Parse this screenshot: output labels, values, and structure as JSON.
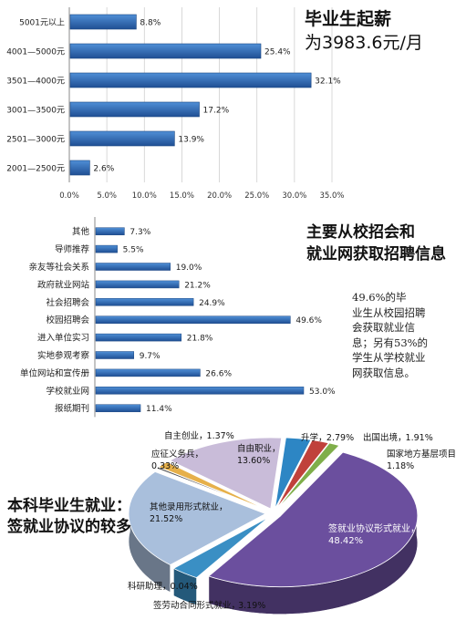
{
  "chart_data": [
    {
      "type": "bar",
      "orientation": "horizontal",
      "title": "毕业生起薪",
      "subtitle": "为3983.6元/月",
      "categories": [
        "5001元以上",
        "4001—5000元",
        "3501—4000元",
        "3001—3500元",
        "2501—3000元",
        "2001—2500元"
      ],
      "values": [
        8.8,
        25.4,
        32.1,
        17.2,
        13.9,
        2.6
      ],
      "value_labels": [
        "8.8%",
        "25.4%",
        "32.1%",
        "17.2%",
        "13.9%",
        "2.6%"
      ],
      "xlim": [
        0,
        35
      ],
      "x_ticks": [
        "0.0%",
        "5.0%",
        "10.0%",
        "15.0%",
        "20.0%",
        "25.0%",
        "30.0%",
        "35.0%"
      ],
      "grid": true,
      "color": "#2f6cb5"
    },
    {
      "type": "bar",
      "orientation": "horizontal",
      "title": "主要从校招会和",
      "subtitle": "就业网获取招聘信息",
      "categories": [
        "其他",
        "导师推荐",
        "亲友等社会关系",
        "政府就业网站",
        "社会招聘会",
        "校园招聘会",
        "进入单位实习",
        "实地参观考察",
        "单位网站和宣传册",
        "学校就业网",
        "报纸期刊"
      ],
      "values": [
        7.3,
        5.5,
        19.0,
        21.2,
        24.9,
        49.6,
        21.8,
        9.7,
        26.6,
        53.0,
        11.4
      ],
      "value_labels": [
        "7.3%",
        "5.5%",
        "19.0%",
        "21.2%",
        "24.9%",
        "49.6%",
        "21.8%",
        "9.7%",
        "26.6%",
        "53.0%",
        "11.4%"
      ],
      "note": [
        "49.6%的毕",
        "业生从校园招聘",
        "会获取就业信",
        "息；另有53%的",
        "学生从学校就业",
        "网获取信息。"
      ],
      "color": "#2f6cb5"
    },
    {
      "type": "pie",
      "title": "本科毕业生就业：",
      "subtitle": "签就业协议的较多",
      "slices": [
        {
          "label": "签就业协议形式就业，",
          "value_text": "48.42%",
          "value": 48.42,
          "color": "#6b4f9e"
        },
        {
          "label": "签劳动合同形式就业，",
          "value_text": "3.19%",
          "value": 3.19,
          "color": "#3a8fc4"
        },
        {
          "label": "科研助理，",
          "value_text": "0.04%",
          "value": 0.04,
          "color": "#c8cf6a"
        },
        {
          "label": "其他录用形式就业，",
          "value_text": "21.52%",
          "value": 21.52,
          "color": "#a9bfdc"
        },
        {
          "label": "应征义务兵，",
          "value_text": "0.33%",
          "value": 0.33,
          "color": "#4b4b4b"
        },
        {
          "label": "自主创业，",
          "value_text": "1.37%",
          "value": 1.37,
          "color": "#e6b04a"
        },
        {
          "label": "自由职业，",
          "value_text": "13.60%",
          "value": 13.6,
          "color": "#c9bcd9"
        },
        {
          "label": "升学，",
          "value_text": "2.79%",
          "value": 2.79,
          "color": "#2d86c4"
        },
        {
          "label": "出国出境，",
          "value_text": "1.91%",
          "value": 1.91,
          "color": "#c0413b"
        },
        {
          "label": "国家地方基层项目，",
          "value_text": "1.18%",
          "value": 1.18,
          "color": "#7fae4a"
        }
      ]
    }
  ]
}
